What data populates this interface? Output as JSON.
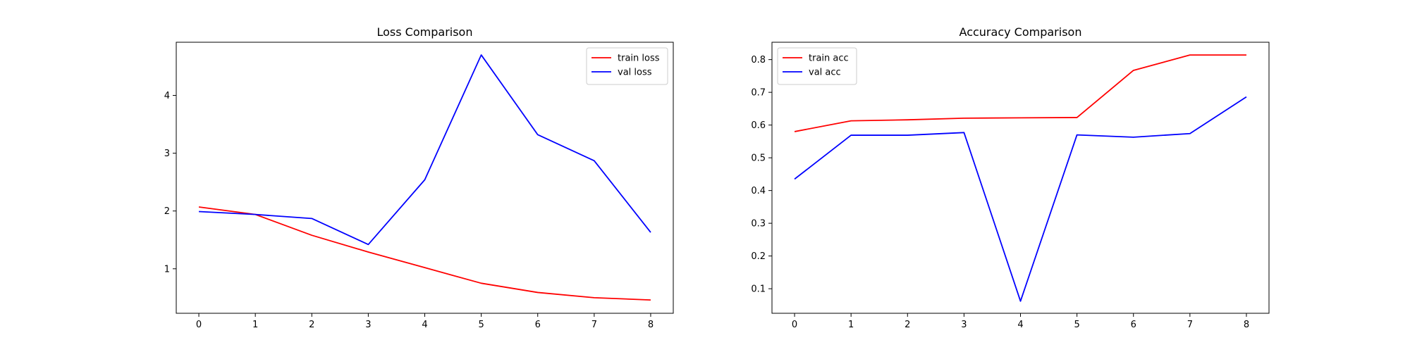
{
  "chart_data": [
    {
      "type": "line",
      "title": "Loss Comparison",
      "xlabel": "",
      "ylabel": "",
      "x": [
        0,
        1,
        2,
        3,
        4,
        5,
        6,
        7,
        8
      ],
      "xlim": [
        -0.4,
        8.4
      ],
      "ylim": [
        0.23,
        4.92
      ],
      "xticks": [
        0,
        1,
        2,
        3,
        4,
        5,
        6,
        7,
        8
      ],
      "yticks": [
        1,
        2,
        3,
        4
      ],
      "grid": false,
      "legend": "top-right",
      "series": [
        {
          "name": "train loss",
          "color": "#ff0000",
          "values": [
            2.07,
            1.94,
            1.58,
            1.29,
            1.02,
            0.75,
            0.59,
            0.5,
            0.46
          ]
        },
        {
          "name": "val loss",
          "color": "#0000ff",
          "values": [
            1.99,
            1.94,
            1.87,
            1.42,
            2.54,
            4.7,
            3.32,
            2.87,
            1.63
          ]
        }
      ]
    },
    {
      "type": "line",
      "title": "Accuracy Comparison",
      "xlabel": "",
      "ylabel": "",
      "x": [
        0,
        1,
        2,
        3,
        4,
        5,
        6,
        7,
        8
      ],
      "xlim": [
        -0.4,
        8.4
      ],
      "ylim": [
        0.025,
        0.853
      ],
      "xticks": [
        0,
        1,
        2,
        3,
        4,
        5,
        6,
        7,
        8
      ],
      "yticks": [
        0.1,
        0.2,
        0.3,
        0.4,
        0.5,
        0.6,
        0.7,
        0.8
      ],
      "grid": false,
      "legend": "top-left",
      "series": [
        {
          "name": "train acc",
          "color": "#ff0000",
          "values": [
            0.58,
            0.613,
            0.616,
            0.621,
            0.622,
            0.623,
            0.767,
            0.814,
            0.814
          ]
        },
        {
          "name": "val acc",
          "color": "#0000ff",
          "values": [
            0.435,
            0.569,
            0.569,
            0.577,
            0.062,
            0.57,
            0.563,
            0.574,
            0.686
          ]
        }
      ]
    }
  ]
}
